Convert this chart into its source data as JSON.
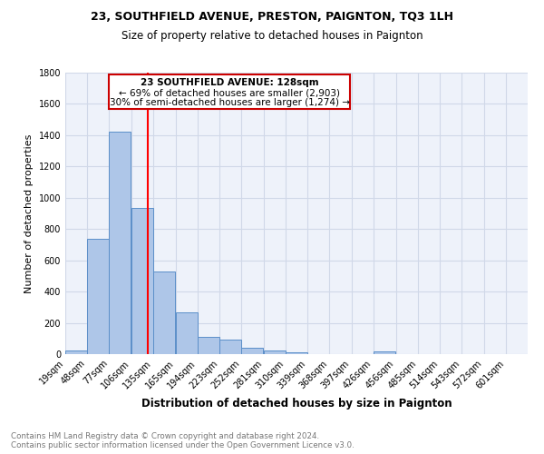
{
  "title1": "23, SOUTHFIELD AVENUE, PRESTON, PAIGNTON, TQ3 1LH",
  "title2": "Size of property relative to detached houses in Paignton",
  "xlabel": "Distribution of detached houses by size in Paignton",
  "ylabel": "Number of detached properties",
  "bin_labels": [
    "19sqm",
    "48sqm",
    "77sqm",
    "106sqm",
    "135sqm",
    "165sqm",
    "194sqm",
    "223sqm",
    "252sqm",
    "281sqm",
    "310sqm",
    "339sqm",
    "368sqm",
    "397sqm",
    "426sqm",
    "456sqm",
    "485sqm",
    "514sqm",
    "543sqm",
    "572sqm",
    "601sqm"
  ],
  "bar_heights": [
    25,
    735,
    1425,
    935,
    530,
    270,
    110,
    95,
    40,
    22,
    13,
    0,
    0,
    0,
    18,
    0,
    0,
    0,
    0,
    0,
    0
  ],
  "bar_color": "#aec6e8",
  "bar_edge_color": "#5b8fc9",
  "grid_color": "#d0d8e8",
  "bg_color": "#eef2fa",
  "annotation_text1": "23 SOUTHFIELD AVENUE: 128sqm",
  "annotation_text2": "← 69% of detached houses are smaller (2,903)",
  "annotation_text3": "30% of semi-detached houses are larger (1,274) →",
  "annotation_box_color": "#ffffff",
  "annotation_box_edge": "#cc0000",
  "footer_text": "Contains HM Land Registry data © Crown copyright and database right 2024.\nContains public sector information licensed under the Open Government Licence v3.0.",
  "ylim": [
    0,
    1800
  ],
  "property_sqm": 128,
  "title1_fontsize": 9,
  "title2_fontsize": 8.5,
  "ylabel_fontsize": 8,
  "xlabel_fontsize": 8.5,
  "tick_fontsize": 7,
  "footer_fontsize": 6.3,
  "ann_fontsize": 7.5
}
